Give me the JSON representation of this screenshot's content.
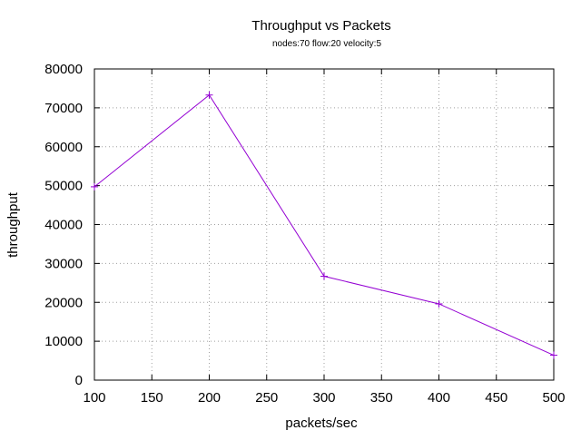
{
  "chart_data": {
    "type": "line",
    "title": "Throughput vs Packets",
    "subtitle": "nodes:70  flow:20  velocity:5",
    "xlabel": "packets/sec",
    "ylabel": "throughput",
    "xlim": [
      100,
      500
    ],
    "ylim": [
      0,
      80000
    ],
    "x_ticks": [
      "100",
      "150",
      "200",
      "250",
      "300",
      "350",
      "400",
      "450",
      "500"
    ],
    "y_ticks": [
      "0",
      "10000",
      "20000",
      "30000",
      "40000",
      "50000",
      "60000",
      "70000",
      "80000"
    ],
    "grid": true,
    "legend": "none",
    "series": [
      {
        "color": "#9400d3",
        "marker": "plus",
        "points": [
          {
            "x": 100,
            "y": 49700
          },
          {
            "x": 200,
            "y": 73300
          },
          {
            "x": 300,
            "y": 26700
          },
          {
            "x": 400,
            "y": 19600
          },
          {
            "x": 500,
            "y": 6400
          }
        ]
      }
    ]
  }
}
